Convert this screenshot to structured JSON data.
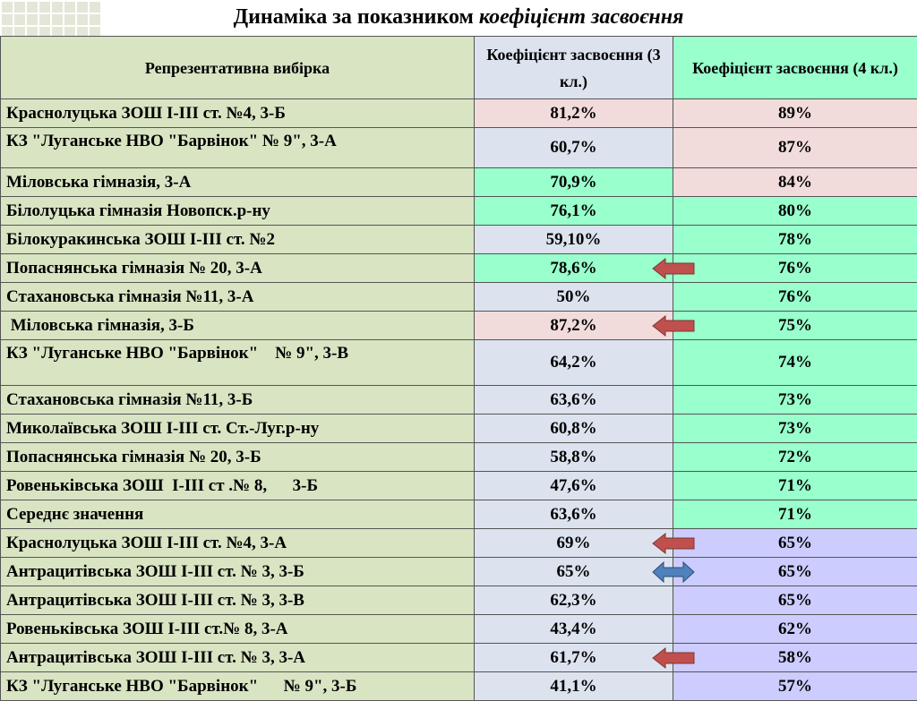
{
  "title": {
    "prefix": "Динаміка за показником ",
    "italic": "коефіцієнт засвоєння"
  },
  "columns": [
    "Репрезентативна вибірка",
    "Коефіцієнт засвоєння (3 кл.)",
    "Коефіцієнт засвоєння (4 кл.)"
  ],
  "rows": [
    {
      "name": "Краснолуцька ЗОШ І-ІІІ ст. №4, 3-Б",
      "v3": "81,2%",
      "v4": "89%",
      "bg3": "#f2dcdb",
      "bg4": "#f2dcdb"
    },
    {
      "name": "КЗ \"Луганське НВО \"Барвінок\" № 9\", 3-А",
      "v3": "60,7%",
      "v4": "87%",
      "bg3": "#dce3ef",
      "bg4": "#f2dcdb"
    },
    {
      "name": "Міловська гімназія, 3-А",
      "v3": "70,9%",
      "v4": "84%",
      "bg3": "#99ffcc",
      "bg4": "#f2dcdb"
    },
    {
      "name": "Білолуцька гімназія Новопск.р-ну",
      "v3": "76,1%",
      "v4": "80%",
      "bg3": "#99ffcc",
      "bg4": "#99ffcc"
    },
    {
      "name": "Білокуракинська ЗОШ І-ІІІ ст. №2",
      "v3": "59,10%",
      "v4": "78%",
      "bg3": "#dce3ef",
      "bg4": "#99ffcc"
    },
    {
      "name": "Попаснянська гімназія № 20, 3-А",
      "v3": "78,6%",
      "v4": "76%",
      "bg3": "#99ffcc",
      "bg4": "#99ffcc"
    },
    {
      "name": "Стахановська гімназія №11, 3-А",
      "v3": "50%",
      "v4": "76%",
      "bg3": "#dce3ef",
      "bg4": "#99ffcc"
    },
    {
      "name": " Міловська гімназія, 3-Б",
      "v3": "87,2%",
      "v4": "75%",
      "bg3": "#f2dcdb",
      "bg4": "#99ffcc"
    },
    {
      "name": "КЗ \"Луганське НВО \"Барвінок\"    № 9\", 3-В",
      "v3": "64,2%",
      "v4": "74%",
      "bg3": "#dce3ef",
      "bg4": "#99ffcc"
    },
    {
      "name": "Стахановська гімназія №11, 3-Б",
      "v3": "63,6%",
      "v4": "73%",
      "bg3": "#dce3ef",
      "bg4": "#99ffcc"
    },
    {
      "name": "Миколаївська ЗОШ І-ІІІ ст. Ст.-Луг.р-ну",
      "v3": "60,8%",
      "v4": "73%",
      "bg3": "#dce3ef",
      "bg4": "#99ffcc"
    },
    {
      "name": "Попаснянська гімназія № 20, 3-Б",
      "v3": "58,8%",
      "v4": "72%",
      "bg3": "#dce3ef",
      "bg4": "#99ffcc"
    },
    {
      "name": "Ровеньківська ЗОШ  І-ІІІ ст .№ 8,      3-Б",
      "v3": "47,6%",
      "v4": "71%",
      "bg3": "#dce3ef",
      "bg4": "#99ffcc"
    },
    {
      "name": "Середнє значення",
      "v3": "63,6%",
      "v4": "71%",
      "bg3": "#dce3ef",
      "bg4": "#99ffcc"
    },
    {
      "name": "Краснолуцька ЗОШ І-ІІІ ст. №4, 3-А",
      "v3": "69%",
      "v4": "65%",
      "bg3": "#dce3ef",
      "bg4": "#ccccff"
    },
    {
      "name": "Антрацитівська ЗОШ І-ІІІ ст. № 3, 3-Б",
      "v3": "65%",
      "v4": "65%",
      "bg3": "#dce3ef",
      "bg4": "#ccccff"
    },
    {
      "name": "Антрацитівська ЗОШ І-ІІІ ст. № 3, 3-В",
      "v3": "62,3%",
      "v4": "65%",
      "bg3": "#dce3ef",
      "bg4": "#ccccff"
    },
    {
      "name": "Ровеньківська ЗОШ І-ІІІ ст.№ 8, 3-А",
      "v3": "43,4%",
      "v4": "62%",
      "bg3": "#dce3ef",
      "bg4": "#ccccff"
    },
    {
      "name": "Антрацитівська ЗОШ І-ІІІ ст. № 3, 3-А",
      "v3": "61,7%",
      "v4": "58%",
      "bg3": "#dce3ef",
      "bg4": "#ccccff"
    },
    {
      "name": "КЗ \"Луганське НВО \"Барвінок\"      № 9\", 3-Б",
      "v3": "41,1%",
      "v4": "57%",
      "bg3": "#dce3ef",
      "bg4": "#ccccff"
    }
  ],
  "arrows": [
    {
      "row": 5,
      "icon": "left-arrow-icon",
      "color": "#c0504d"
    },
    {
      "row": 7,
      "icon": "left-arrow-icon",
      "color": "#c0504d"
    },
    {
      "row": 14,
      "icon": "left-arrow-icon",
      "color": "#c0504d"
    },
    {
      "row": 15,
      "icon": "double-arrow-icon",
      "color": "#4f81bd"
    },
    {
      "row": 18,
      "icon": "left-arrow-icon",
      "color": "#c0504d"
    }
  ],
  "colors": {
    "name_bg": "#d9e4c3",
    "header_bg3": "#dce3ef",
    "header_bg4": "#99ffcc",
    "border": "#555555"
  }
}
